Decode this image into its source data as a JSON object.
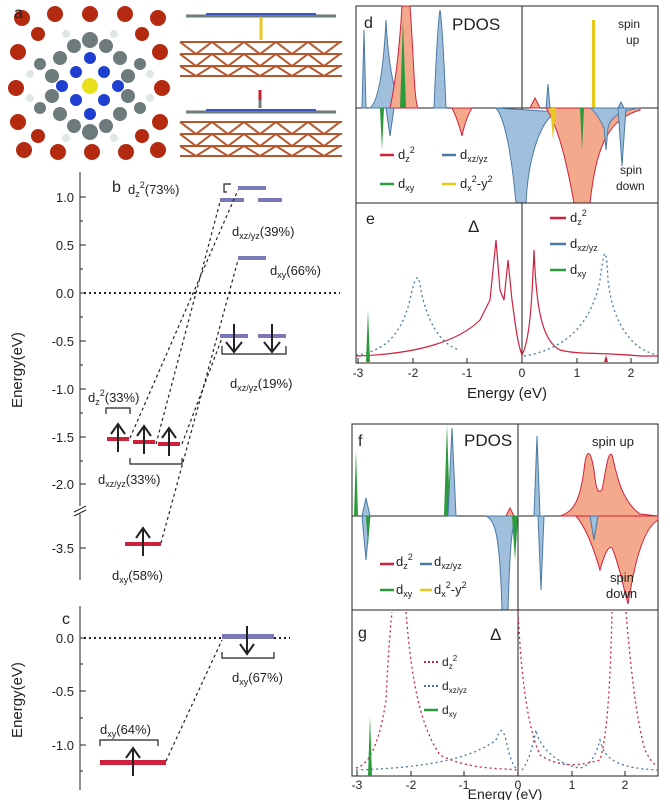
{
  "panels": {
    "a": "a",
    "b": "b",
    "c": "c",
    "d": "d",
    "e": "e",
    "f": "f",
    "g": "g"
  },
  "panel_b": {
    "ylabel": "Energy(eV)",
    "ticks": [
      "1.0",
      "0.5",
      "0.0",
      "-0.5",
      "-1.0",
      "-1.5",
      "-2.0",
      "-3.5"
    ],
    "labels": {
      "dz2_top_base": "d",
      "dz2_top_sub": "z",
      "dz2_top_sup": "2",
      "dz2_top_pct": "(73%)",
      "dxzyz_top_base": "d",
      "dxzyz_top_sub": "xz/yz",
      "dxzyz_top_pct": "(39%)",
      "dxy_top_base": "d",
      "dxy_top_sub": "xy",
      "dxy_top_pct": "(66%)",
      "dxzyz_mid_base": "d",
      "dxzyz_mid_sub": "xz/yz",
      "dxzyz_mid_pct": "(19%)",
      "dz2_low_base": "d",
      "dz2_low_sub": "z",
      "dz2_low_sup": "2",
      "dz2_low_pct": "(33%)",
      "dxzyz_low_base": "d",
      "dxzyz_low_sub": "xz/yz",
      "dxzyz_low_pct": "(33%)",
      "dxy_low_base": "d",
      "dxy_low_sub": "xy",
      "dxy_low_pct": "(58%)"
    }
  },
  "panel_c": {
    "ylabel": "Energy(eV)",
    "ticks": [
      "0.0",
      "-0.5",
      "-1.0"
    ],
    "labels": {
      "dxy_left_base": "d",
      "dxy_left_sub": "xy",
      "dxy_left_pct": "(64%)",
      "dxy_right_base": "d",
      "dxy_right_sub": "xy",
      "dxy_right_pct": "(67%)"
    }
  },
  "panel_d": {
    "title": "PDOS",
    "spin_up_1": "spin",
    "spin_up_2": "up",
    "spin_down_1": "spin",
    "spin_down_2": "down",
    "legend": [
      {
        "base": "d",
        "sub": "z",
        "sup": "2",
        "color": "#d0213c"
      },
      {
        "base": "d",
        "sub": "xz/yz",
        "sup": "",
        "color": "#4a79a5"
      },
      {
        "base": "d",
        "sub": "xy",
        "sup": "",
        "color": "#2a9a3a"
      },
      {
        "base": "d",
        "sub": "x",
        "sup": "2",
        "tail": "-y",
        "tailsup": "2",
        "color": "#e8c81a"
      }
    ]
  },
  "panel_e": {
    "title": "Δ",
    "xlabel": "Energy (eV)",
    "xticks": [
      "-3",
      "-2",
      "-1",
      "0",
      "1",
      "2"
    ],
    "legend": [
      {
        "base": "d",
        "sub": "z",
        "sup": "2",
        "color": "#d0213c"
      },
      {
        "base": "d",
        "sub": "xz/yz",
        "sup": "",
        "color": "#4a79a5"
      },
      {
        "base": "d",
        "sub": "xy",
        "sup": "",
        "color": "#2a9a3a"
      }
    ]
  },
  "panel_f": {
    "title": "PDOS",
    "spin_up": "spin up",
    "spin_down_1": "spin",
    "spin_down_2": "down",
    "legend": [
      {
        "base": "d",
        "sub": "z",
        "sup": "2",
        "color": "#d0213c"
      },
      {
        "base": "d",
        "sub": "xz/yz",
        "sup": "",
        "color": "#4a79a5"
      },
      {
        "base": "d",
        "sub": "xy",
        "sup": "",
        "color": "#2a9a3a"
      },
      {
        "base": "d",
        "sub": "x",
        "sup": "2",
        "tail": "-y",
        "tailsup": "2",
        "color": "#e8c81a"
      }
    ]
  },
  "panel_g": {
    "title": "Δ",
    "xlabel": "Energy (eV)",
    "xticks": [
      "-3",
      "-2",
      "-1",
      "0",
      "1",
      "2"
    ],
    "legend": [
      {
        "base": "d",
        "sub": "z",
        "sup": "2",
        "color": "#d0213c"
      },
      {
        "base": "d",
        "sub": "xz/yz",
        "sup": "",
        "color": "#4a79a5"
      },
      {
        "base": "d",
        "sub": "xy",
        "sup": "",
        "color": "#2a9a3a"
      }
    ]
  },
  "colors": {
    "red": "#d0213c",
    "blue": "#4a79a5",
    "green": "#2a9a3a",
    "yellow": "#e8c81a",
    "red_fill": "#f4a98c",
    "blue_fill": "#9fbfdc",
    "level_purple": "#7a7ab8",
    "level_red": "#d0213c"
  }
}
